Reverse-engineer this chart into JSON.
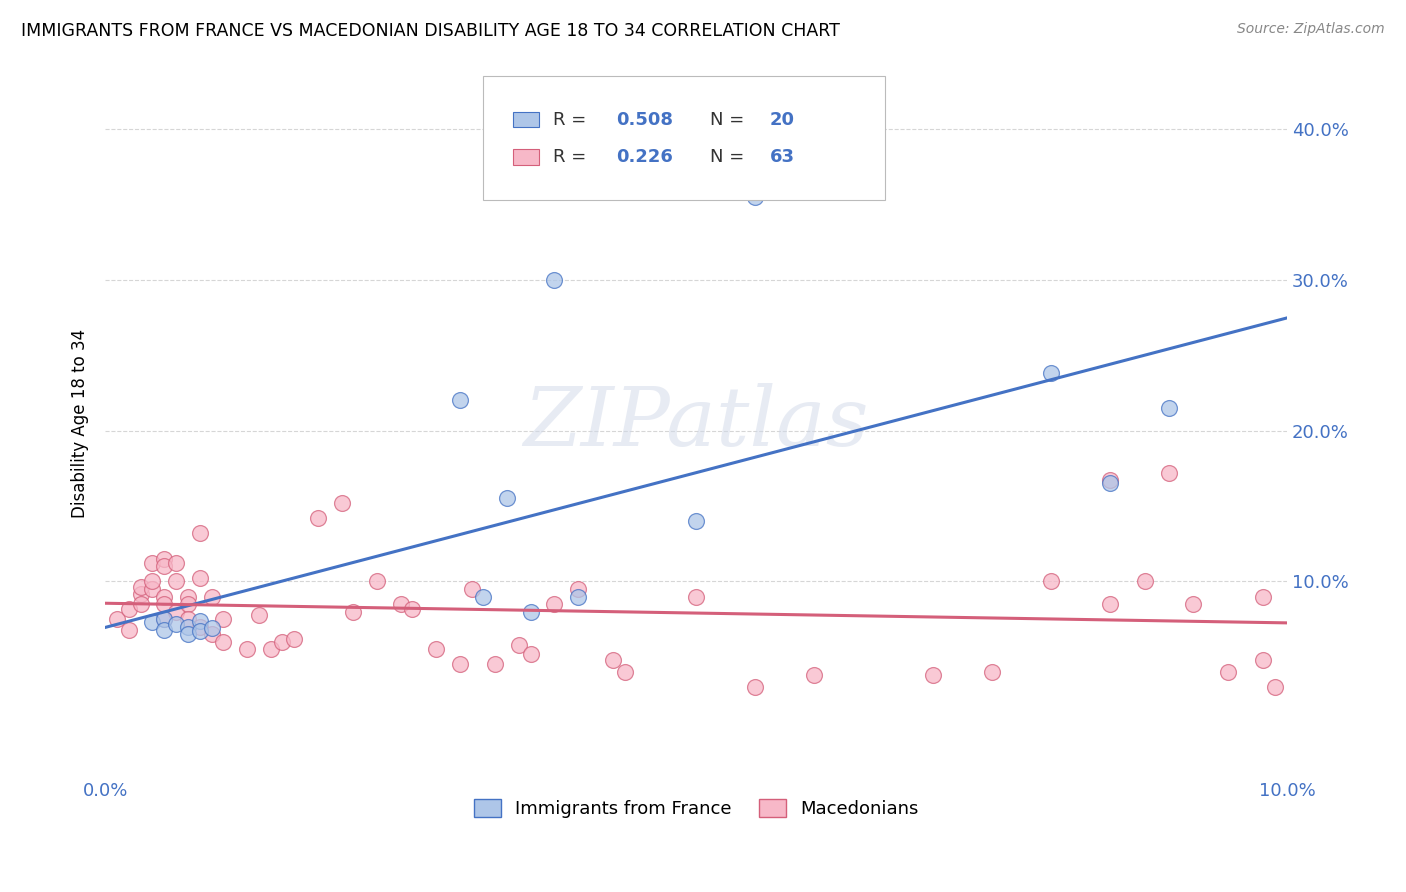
{
  "title": "IMMIGRANTS FROM FRANCE VS MACEDONIAN DISABILITY AGE 18 TO 34 CORRELATION CHART",
  "source": "Source: ZipAtlas.com",
  "ylabel": "Disability Age 18 to 34",
  "xlim": [
    0.0,
    0.1
  ],
  "ylim": [
    -0.03,
    0.44
  ],
  "blue_R": 0.508,
  "blue_N": 20,
  "pink_R": 0.226,
  "pink_N": 63,
  "blue_color": "#aec6e8",
  "blue_line_color": "#4472c4",
  "pink_color": "#f7b8c8",
  "pink_line_color": "#d45f7a",
  "watermark_text": "ZIPatlas",
  "legend_label_blue": "Immigrants from France",
  "legend_label_pink": "Macedonians",
  "blue_scatter_x": [
    0.004,
    0.005,
    0.005,
    0.006,
    0.007,
    0.007,
    0.008,
    0.008,
    0.009,
    0.03,
    0.032,
    0.034,
    0.036,
    0.038,
    0.04,
    0.05,
    0.055,
    0.08,
    0.085,
    0.09
  ],
  "blue_scatter_y": [
    0.073,
    0.075,
    0.068,
    0.072,
    0.07,
    0.065,
    0.074,
    0.067,
    0.069,
    0.22,
    0.09,
    0.155,
    0.08,
    0.3,
    0.09,
    0.14,
    0.355,
    0.238,
    0.165,
    0.215
  ],
  "pink_scatter_x": [
    0.001,
    0.002,
    0.002,
    0.003,
    0.003,
    0.003,
    0.004,
    0.004,
    0.004,
    0.005,
    0.005,
    0.005,
    0.005,
    0.005,
    0.006,
    0.006,
    0.006,
    0.007,
    0.007,
    0.007,
    0.008,
    0.008,
    0.008,
    0.009,
    0.009,
    0.01,
    0.01,
    0.012,
    0.013,
    0.014,
    0.015,
    0.016,
    0.018,
    0.02,
    0.021,
    0.023,
    0.025,
    0.026,
    0.028,
    0.03,
    0.031,
    0.033,
    0.035,
    0.036,
    0.038,
    0.04,
    0.043,
    0.044,
    0.05,
    0.055,
    0.06,
    0.07,
    0.075,
    0.08,
    0.085,
    0.085,
    0.088,
    0.09,
    0.092,
    0.095,
    0.098,
    0.098,
    0.099
  ],
  "pink_scatter_y": [
    0.075,
    0.082,
    0.068,
    0.092,
    0.085,
    0.096,
    0.112,
    0.095,
    0.1,
    0.115,
    0.09,
    0.085,
    0.075,
    0.11,
    0.112,
    0.1,
    0.08,
    0.09,
    0.085,
    0.075,
    0.102,
    0.132,
    0.07,
    0.065,
    0.09,
    0.06,
    0.075,
    0.055,
    0.078,
    0.055,
    0.06,
    0.062,
    0.142,
    0.152,
    0.08,
    0.1,
    0.085,
    0.082,
    0.055,
    0.045,
    0.095,
    0.045,
    0.058,
    0.052,
    0.085,
    0.095,
    0.048,
    0.04,
    0.09,
    0.03,
    0.038,
    0.038,
    0.04,
    0.1,
    0.167,
    0.085,
    0.1,
    0.172,
    0.085,
    0.04,
    0.09,
    0.048,
    0.03
  ]
}
